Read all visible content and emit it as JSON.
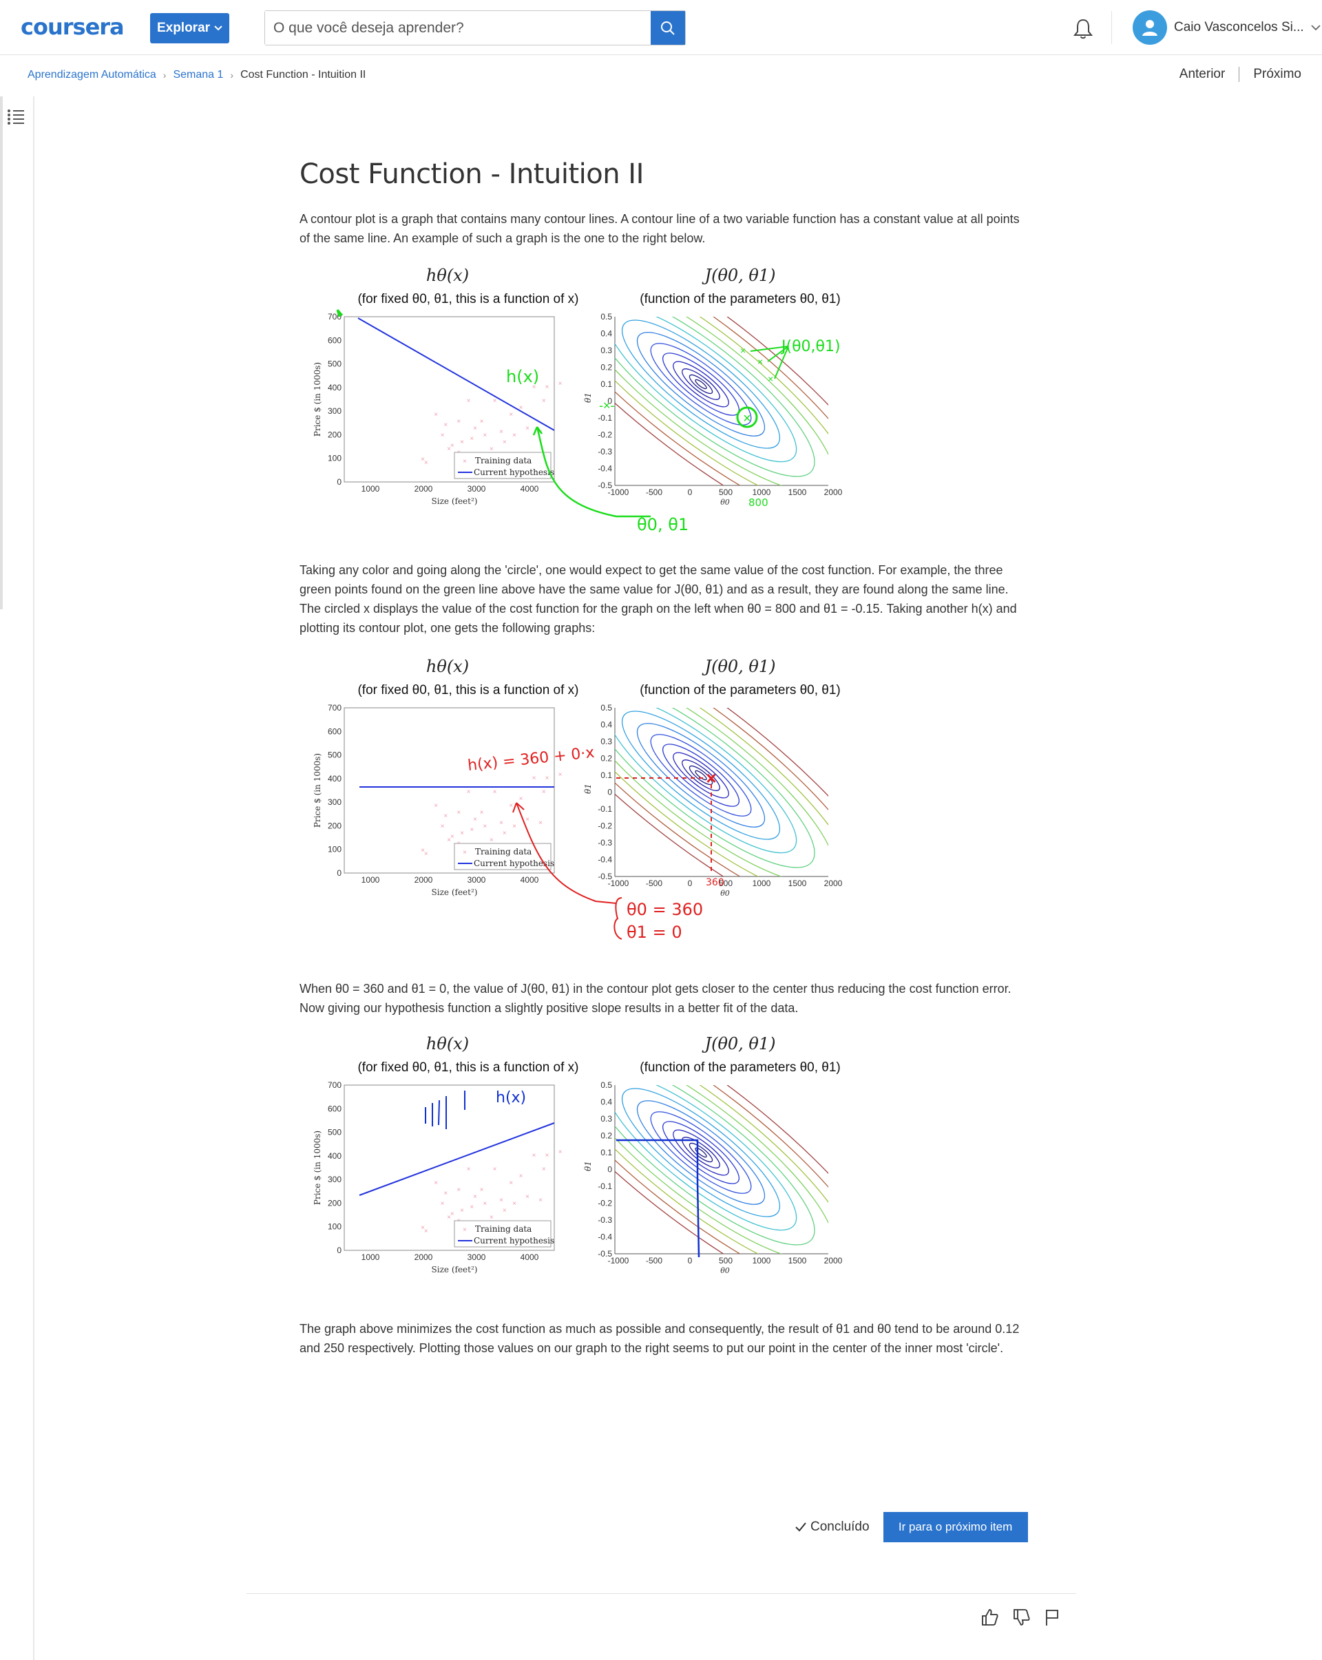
{
  "header": {
    "logo": "coursera",
    "explore_label": "Explorar",
    "search_placeholder": "O que você deseja aprender?",
    "username": "Caio Vasconcelos Si..."
  },
  "breadcrumb": {
    "course": "Aprendizagem Automática",
    "week": "Semana 1",
    "current": "Cost Function - Intuition II"
  },
  "nav": {
    "prev": "Anterior",
    "next": "Próximo"
  },
  "lesson": {
    "title": "Cost Function - Intuition II",
    "p1": "A contour plot is a graph that contains many contour lines. A contour line of a two variable function has a constant value at all points of the same line. An example of such a graph is the one to the right below.",
    "p2": "Taking any color and going along the 'circle', one would expect to get the same value of the cost function. For example, the three green points found on the green line above have the same value for J(θ0, θ1) and as a result, they are found along the same line. The circled x displays the value of the cost function for the graph on the left when θ0 = 800 and θ1 = -0.15. Taking another h(x) and plotting its contour plot, one gets the following graphs:",
    "p3": "When θ0 = 360 and θ1 = 0, the value of J(θ0, θ1) in the contour plot gets closer to the center thus reducing the cost function error. Now giving our hypothesis function a slightly positive slope results in a better fit of the data.",
    "p4": "The graph above minimizes the cost function as much as possible and consequently, the result of θ1 and θ0 tend to be around 0.12 and 250 respectively. Plotting those values on our graph to the right seems to put our point in the center of the inner most 'circle'."
  },
  "figure": {
    "left_title": "hθ(x)",
    "left_subtitle": "(for fixed θ0, θ1, this is a function of x)",
    "right_title": "J(θ0, θ1)",
    "right_subtitle": "(function of the parameters θ0, θ1)",
    "left_ylabel": "Price $ (in 1000s)",
    "left_xlabel": "Size (feet²)",
    "left_yticks": [
      "700",
      "600",
      "500",
      "400",
      "300",
      "200",
      "100",
      "0"
    ],
    "left_xticks": [
      "1000",
      "2000",
      "3000",
      "4000"
    ],
    "legend_training": "Training data",
    "legend_hypothesis": "Current hypothesis",
    "right_yticks": [
      "0.5",
      "0.4",
      "0.3",
      "0.2",
      "0.1",
      "0",
      "-0.1",
      "-0.2",
      "-0.3",
      "-0.4",
      "-0.5"
    ],
    "right_xticks": [
      "-1000",
      "-500",
      "0",
      "500",
      "1000",
      "1500",
      "2000"
    ],
    "right_ylabel": "θ1",
    "right_xlabel": "θ0"
  },
  "annotations": {
    "fig1_hx": "h(x)",
    "fig1_j": "J(θ0,θ1)",
    "fig1_params": "θ0, θ1",
    "fig1_800": "800",
    "fig2_hx": "h(x) = 360 + 0·x",
    "fig2_t0": "θ0 = 360",
    "fig2_t1": "θ1 = 0",
    "fig2_360": "360",
    "fig3_hx": "h(x)"
  },
  "footer": {
    "done_label": "Concluído",
    "next_item_label": "Ir para o próximo item"
  }
}
